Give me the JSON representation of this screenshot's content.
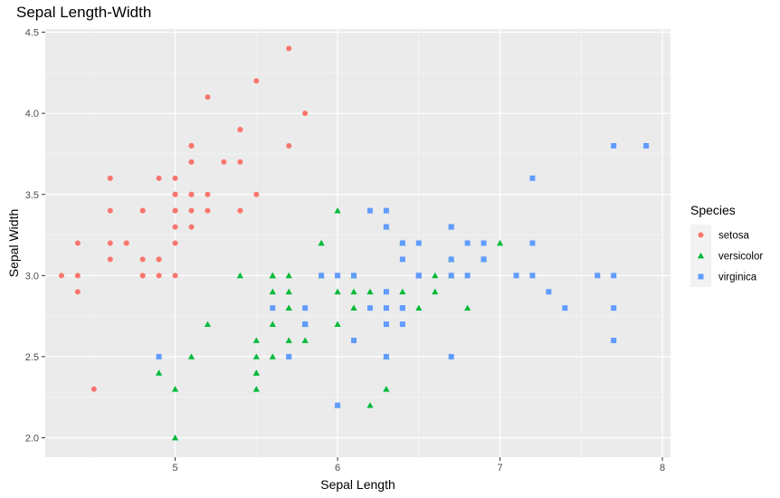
{
  "chart_data": {
    "type": "scatter",
    "title": "Sepal Length-Width",
    "xlabel": "Sepal Length",
    "ylabel": "Sepal Width",
    "xlim": [
      4.2,
      8.05
    ],
    "ylim": [
      1.88,
      4.52
    ],
    "x_ticks": [
      5,
      6,
      7,
      8
    ],
    "x_tick_labels": [
      "5",
      "6",
      "7",
      "8"
    ],
    "y_ticks": [
      2.0,
      2.5,
      3.0,
      3.5,
      4.0,
      4.5
    ],
    "y_tick_labels": [
      "2.0",
      "2.5",
      "3.0",
      "3.5",
      "4.0",
      "4.5"
    ],
    "grid": true,
    "legend": {
      "title": "Species",
      "placement": "right"
    },
    "series": [
      {
        "name": "setosa",
        "color": "#F8766D",
        "marker": "circle",
        "points": [
          [
            5.1,
            3.5
          ],
          [
            4.9,
            3.0
          ],
          [
            4.7,
            3.2
          ],
          [
            4.6,
            3.1
          ],
          [
            5.0,
            3.6
          ],
          [
            5.4,
            3.9
          ],
          [
            4.6,
            3.4
          ],
          [
            5.0,
            3.4
          ],
          [
            4.4,
            2.9
          ],
          [
            4.9,
            3.1
          ],
          [
            5.4,
            3.7
          ],
          [
            4.8,
            3.4
          ],
          [
            4.8,
            3.0
          ],
          [
            4.3,
            3.0
          ],
          [
            5.8,
            4.0
          ],
          [
            5.7,
            4.4
          ],
          [
            5.4,
            3.9
          ],
          [
            5.1,
            3.5
          ],
          [
            5.7,
            3.8
          ],
          [
            5.1,
            3.8
          ],
          [
            5.4,
            3.4
          ],
          [
            5.1,
            3.7
          ],
          [
            4.6,
            3.6
          ],
          [
            5.1,
            3.3
          ],
          [
            4.8,
            3.4
          ],
          [
            5.0,
            3.0
          ],
          [
            5.0,
            3.4
          ],
          [
            5.2,
            3.5
          ],
          [
            5.2,
            3.4
          ],
          [
            4.7,
            3.2
          ],
          [
            4.8,
            3.1
          ],
          [
            5.4,
            3.4
          ],
          [
            5.2,
            4.1
          ],
          [
            5.5,
            4.2
          ],
          [
            4.9,
            3.1
          ],
          [
            5.0,
            3.2
          ],
          [
            5.5,
            3.5
          ],
          [
            4.9,
            3.6
          ],
          [
            4.4,
            3.0
          ],
          [
            5.1,
            3.4
          ],
          [
            5.0,
            3.5
          ],
          [
            4.5,
            2.3
          ],
          [
            4.4,
            3.2
          ],
          [
            5.0,
            3.5
          ],
          [
            5.1,
            3.8
          ],
          [
            4.8,
            3.0
          ],
          [
            5.1,
            3.8
          ],
          [
            4.6,
            3.2
          ],
          [
            5.3,
            3.7
          ],
          [
            5.0,
            3.3
          ]
        ]
      },
      {
        "name": "versicolor",
        "color": "#00BA38",
        "marker": "triangle",
        "points": [
          [
            7.0,
            3.2
          ],
          [
            6.4,
            3.2
          ],
          [
            6.9,
            3.1
          ],
          [
            5.5,
            2.3
          ],
          [
            6.5,
            2.8
          ],
          [
            5.7,
            2.8
          ],
          [
            6.3,
            3.3
          ],
          [
            4.9,
            2.4
          ],
          [
            6.6,
            2.9
          ],
          [
            5.2,
            2.7
          ],
          [
            5.0,
            2.0
          ],
          [
            5.9,
            3.0
          ],
          [
            6.0,
            2.2
          ],
          [
            6.1,
            2.9
          ],
          [
            5.6,
            2.9
          ],
          [
            6.7,
            3.1
          ],
          [
            5.6,
            3.0
          ],
          [
            5.8,
            2.7
          ],
          [
            6.2,
            2.2
          ],
          [
            5.6,
            2.5
          ],
          [
            5.9,
            3.2
          ],
          [
            6.1,
            2.8
          ],
          [
            6.3,
            2.5
          ],
          [
            6.1,
            2.8
          ],
          [
            6.4,
            2.9
          ],
          [
            6.6,
            3.0
          ],
          [
            6.8,
            2.8
          ],
          [
            6.7,
            3.0
          ],
          [
            6.0,
            2.9
          ],
          [
            5.7,
            2.6
          ],
          [
            5.5,
            2.4
          ],
          [
            5.5,
            2.4
          ],
          [
            5.8,
            2.7
          ],
          [
            6.0,
            2.7
          ],
          [
            5.4,
            3.0
          ],
          [
            6.0,
            3.4
          ],
          [
            6.7,
            3.1
          ],
          [
            6.3,
            2.3
          ],
          [
            5.6,
            3.0
          ],
          [
            5.5,
            2.5
          ],
          [
            5.5,
            2.6
          ],
          [
            6.1,
            3.0
          ],
          [
            5.8,
            2.6
          ],
          [
            5.0,
            2.3
          ],
          [
            5.6,
            2.7
          ],
          [
            5.7,
            3.0
          ],
          [
            5.7,
            2.9
          ],
          [
            6.2,
            2.9
          ],
          [
            5.1,
            2.5
          ],
          [
            5.7,
            2.8
          ]
        ]
      },
      {
        "name": "virginica",
        "color": "#619CFF",
        "marker": "square",
        "points": [
          [
            6.3,
            3.3
          ],
          [
            5.8,
            2.7
          ],
          [
            7.1,
            3.0
          ],
          [
            6.3,
            2.9
          ],
          [
            6.5,
            3.0
          ],
          [
            7.6,
            3.0
          ],
          [
            4.9,
            2.5
          ],
          [
            7.3,
            2.9
          ],
          [
            6.7,
            2.5
          ],
          [
            7.2,
            3.6
          ],
          [
            6.5,
            3.2
          ],
          [
            6.4,
            2.7
          ],
          [
            6.8,
            3.0
          ],
          [
            5.7,
            2.5
          ],
          [
            5.8,
            2.8
          ],
          [
            6.4,
            3.2
          ],
          [
            6.5,
            3.0
          ],
          [
            7.7,
            3.8
          ],
          [
            7.7,
            2.6
          ],
          [
            6.0,
            2.2
          ],
          [
            6.9,
            3.2
          ],
          [
            5.6,
            2.8
          ],
          [
            7.7,
            2.8
          ],
          [
            6.3,
            2.7
          ],
          [
            6.7,
            3.3
          ],
          [
            7.2,
            3.2
          ],
          [
            6.2,
            2.8
          ],
          [
            6.1,
            3.0
          ],
          [
            6.4,
            2.8
          ],
          [
            7.2,
            3.0
          ],
          [
            7.4,
            2.8
          ],
          [
            7.9,
            3.8
          ],
          [
            6.4,
            2.8
          ],
          [
            6.3,
            2.8
          ],
          [
            6.1,
            2.6
          ],
          [
            7.7,
            3.0
          ],
          [
            6.3,
            3.4
          ],
          [
            6.4,
            3.1
          ],
          [
            6.0,
            3.0
          ],
          [
            6.9,
            3.1
          ],
          [
            6.7,
            3.1
          ],
          [
            6.9,
            3.1
          ],
          [
            5.8,
            2.7
          ],
          [
            6.8,
            3.2
          ],
          [
            6.7,
            3.3
          ],
          [
            6.7,
            3.0
          ],
          [
            6.3,
            2.5
          ],
          [
            6.5,
            3.0
          ],
          [
            6.2,
            3.4
          ],
          [
            5.9,
            3.0
          ]
        ]
      }
    ]
  }
}
